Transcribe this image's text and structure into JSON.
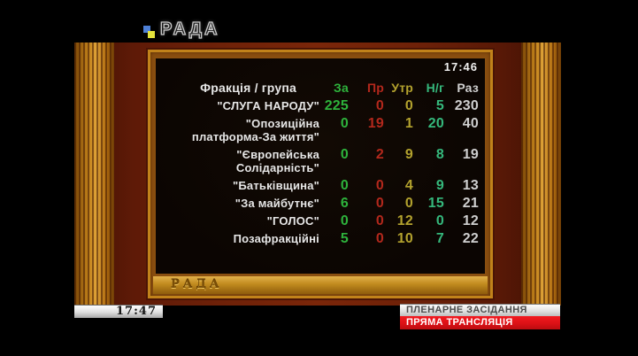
{
  "broadcast": {
    "channel_logo": "РАДА",
    "clock_bottom": "17:47",
    "caption_primary": "ПЛЕНАРНЕ ЗАСІДАННЯ",
    "caption_secondary": "ПРЯМА ТРАНСЛЯЦІЯ"
  },
  "board": {
    "clock": "17:46",
    "emblem": "РАДА",
    "table": {
      "name_header": "Фракція / група",
      "columns": [
        {
          "label": "За",
          "color": "#2eb33c"
        },
        {
          "label": "Пр",
          "color": "#b3281c"
        },
        {
          "label": "Утр",
          "color": "#b3a22e"
        },
        {
          "label": "Н/г",
          "color": "#35b87c"
        },
        {
          "label": "Раз",
          "color": "#cfcfcf"
        }
      ],
      "rows": [
        {
          "name": "\"СЛУГА НАРОДУ\"",
          "values": [
            "225",
            "0",
            "0",
            "5",
            "230"
          ]
        },
        {
          "name": "\"Опозиційна\nплатформа-За життя\"",
          "values": [
            "0",
            "19",
            "1",
            "20",
            "40"
          ]
        },
        {
          "name": "\"Європейська\nСолідарність\"",
          "values": [
            "0",
            "2",
            "9",
            "8",
            "19"
          ]
        },
        {
          "name": "\"Батьківщина\"",
          "values": [
            "0",
            "0",
            "4",
            "9",
            "13"
          ]
        },
        {
          "name": "\"За майбутнє\"",
          "values": [
            "6",
            "0",
            "0",
            "15",
            "21"
          ]
        },
        {
          "name": "\"ГОЛОС\"",
          "values": [
            "0",
            "0",
            "12",
            "0",
            "12"
          ]
        },
        {
          "name": "Позафракційні",
          "values": [
            "5",
            "0",
            "10",
            "7",
            "22"
          ]
        }
      ]
    }
  },
  "chart_data": {
    "type": "table",
    "title": "Фракція / група",
    "columns": [
      "За",
      "Пр",
      "Утр",
      "Н/г",
      "Раз"
    ],
    "rows": [
      {
        "faction": "СЛУГА НАРОДУ",
        "za": 225,
        "pr": 0,
        "utr": 0,
        "ng": 5,
        "raz": 230
      },
      {
        "faction": "Опозиційна платформа-За життя",
        "za": 0,
        "pr": 19,
        "utr": 1,
        "ng": 20,
        "raz": 40
      },
      {
        "faction": "Європейська Солідарність",
        "za": 0,
        "pr": 2,
        "utr": 9,
        "ng": 8,
        "raz": 19
      },
      {
        "faction": "Батьківщина",
        "za": 0,
        "pr": 0,
        "utr": 4,
        "ng": 9,
        "raz": 13
      },
      {
        "faction": "За майбутнє",
        "za": 6,
        "pr": 0,
        "utr": 0,
        "ng": 15,
        "raz": 21
      },
      {
        "faction": "ГОЛОС",
        "za": 0,
        "pr": 0,
        "utr": 12,
        "ng": 0,
        "raz": 12
      },
      {
        "faction": "Позафракційні",
        "za": 5,
        "pr": 0,
        "utr": 10,
        "ng": 7,
        "raz": 22
      }
    ]
  }
}
